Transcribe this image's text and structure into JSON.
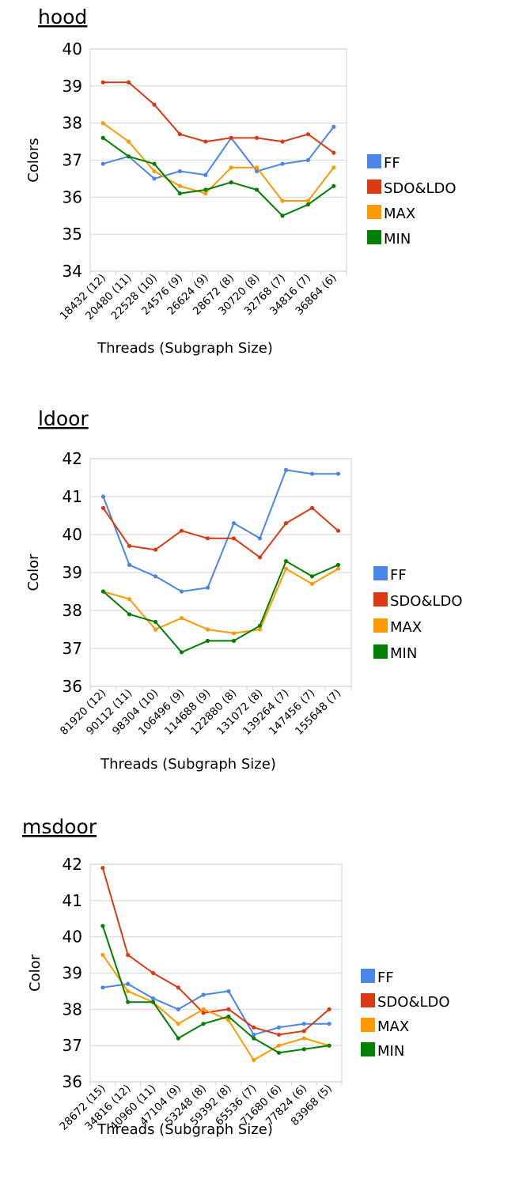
{
  "chart_data": [
    {
      "type": "line",
      "title": "hood",
      "xlabel": "Threads (Subgraph Size)",
      "ylabel": "Colors",
      "ylim": [
        34,
        40
      ],
      "yticks": [
        34,
        35,
        36,
        37,
        38,
        39,
        40
      ],
      "grid": true,
      "legend_position": "right",
      "categories": [
        "18432 (12)",
        "20480 (11)",
        "22528 (10)",
        "24576 (9)",
        "26624 (9)",
        "28672 (8)",
        "30720 (8)",
        "32768 (7)",
        "34816 (7)",
        "36864 (6)"
      ],
      "series": [
        {
          "name": "FF",
          "color": "#4a86e8",
          "values": [
            36.9,
            37.1,
            36.5,
            36.7,
            36.6,
            37.6,
            36.7,
            36.9,
            37.0,
            37.9
          ]
        },
        {
          "name": "SDO&LDO",
          "color": "#dc3912",
          "values": [
            39.1,
            39.1,
            38.5,
            37.7,
            37.5,
            37.6,
            37.6,
            37.5,
            37.7,
            37.2
          ]
        },
        {
          "name": "MAX",
          "color": "#ff9900",
          "values": [
            38.0,
            37.5,
            36.7,
            36.3,
            36.1,
            36.8,
            36.8,
            35.9,
            35.9,
            36.8
          ]
        },
        {
          "name": "MIN",
          "color": "#008000",
          "values": [
            37.6,
            37.1,
            36.9,
            36.1,
            36.2,
            36.4,
            36.2,
            35.5,
            35.8,
            36.3
          ]
        }
      ]
    },
    {
      "type": "line",
      "title": "ldoor",
      "xlabel": "Threads (Subgraph Size)",
      "ylabel": "Color",
      "ylim": [
        36,
        42
      ],
      "yticks": [
        36,
        37,
        38,
        39,
        40,
        41,
        42
      ],
      "grid": true,
      "legend_position": "right",
      "categories": [
        "81920 (12)",
        "90112 (11)",
        "98304 (10)",
        "106496 (9)",
        "114688 (9)",
        "122880 (8)",
        "131072 (8)",
        "139264 (7)",
        "147456 (7)",
        "155648 (7)"
      ],
      "series": [
        {
          "name": "FF",
          "color": "#4a86e8",
          "values": [
            41.0,
            39.2,
            38.9,
            38.5,
            38.6,
            40.3,
            39.9,
            41.7,
            41.6,
            41.6
          ]
        },
        {
          "name": "SDO&LDO",
          "color": "#dc3912",
          "values": [
            40.7,
            39.7,
            39.6,
            40.1,
            39.9,
            39.9,
            39.4,
            40.3,
            40.7,
            40.1
          ]
        },
        {
          "name": "MAX",
          "color": "#ff9900",
          "values": [
            38.5,
            38.3,
            37.5,
            37.8,
            37.5,
            37.4,
            37.5,
            39.1,
            38.7,
            39.1
          ]
        },
        {
          "name": "MIN",
          "color": "#008000",
          "values": [
            38.5,
            37.9,
            37.7,
            36.9,
            37.2,
            37.2,
            37.6,
            39.3,
            38.9,
            39.2
          ]
        }
      ]
    },
    {
      "type": "line",
      "title": "msdoor",
      "xlabel": "Threads (Subgraph Size)",
      "ylabel": "Color",
      "ylim": [
        36,
        42
      ],
      "yticks": [
        36,
        37,
        38,
        39,
        40,
        41,
        42
      ],
      "grid": true,
      "legend_position": "right",
      "categories": [
        "28672 (15)",
        "34816 (12)",
        "40960 (11)",
        "47104 (9)",
        "53248 (8)",
        "59392 (8)",
        "65536 (7)",
        "71680 (6)",
        "77824 (6)",
        "83968 (5)"
      ],
      "series": [
        {
          "name": "FF",
          "color": "#4a86e8",
          "values": [
            38.6,
            38.7,
            38.3,
            38.0,
            38.4,
            38.5,
            37.3,
            37.5,
            37.6,
            37.6
          ]
        },
        {
          "name": "SDO&LDO",
          "color": "#dc3912",
          "values": [
            41.9,
            39.5,
            39.0,
            38.6,
            37.9,
            38.0,
            37.5,
            37.3,
            37.4,
            38.0
          ]
        },
        {
          "name": "MAX",
          "color": "#ff9900",
          "values": [
            39.5,
            38.5,
            38.2,
            37.6,
            38.0,
            37.7,
            36.6,
            37.0,
            37.2,
            37.0
          ]
        },
        {
          "name": "MIN",
          "color": "#008000",
          "values": [
            40.3,
            38.2,
            38.2,
            37.2,
            37.6,
            37.8,
            37.2,
            36.8,
            36.9,
            37.0
          ]
        }
      ]
    }
  ]
}
